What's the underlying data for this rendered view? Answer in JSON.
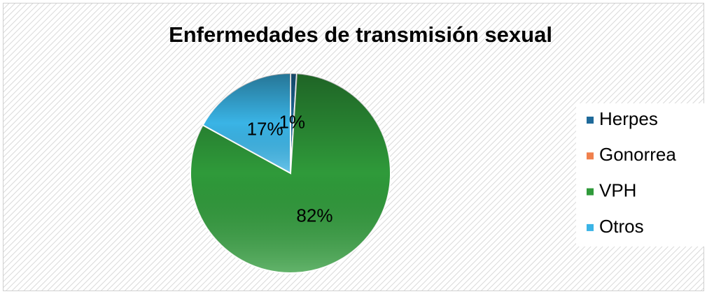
{
  "chart_data": {
    "type": "pie",
    "title": "Enfermedades de transmisión sexual",
    "categories": [
      "Herpes",
      "Gonorrea",
      "VPH",
      "Otros"
    ],
    "values": [
      1,
      0,
      82,
      17
    ],
    "value_labels": [
      "1%",
      null,
      "82%",
      "17%"
    ],
    "colors": [
      "#1f6a9a",
      "#f0804c",
      "#2f9a3a",
      "#3ab4e6"
    ],
    "legend": "right"
  }
}
